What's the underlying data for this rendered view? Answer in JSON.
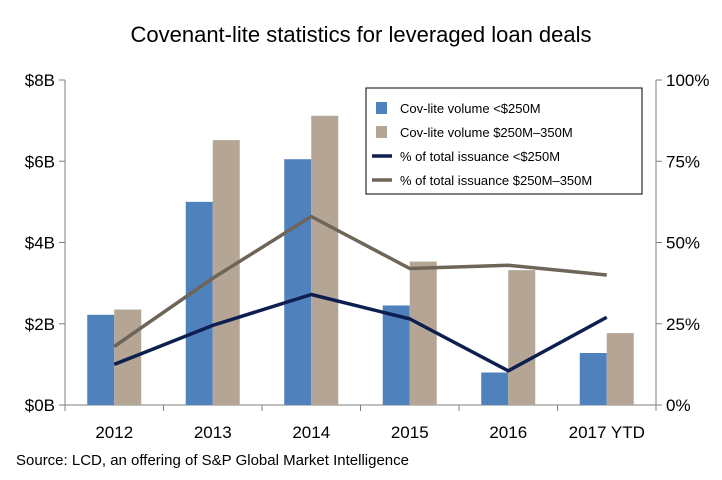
{
  "chart_data": {
    "type": "bar",
    "title": "Covenant-lite statistics  for leveraged loan deals",
    "source": "Source: LCD, an offering of S&P Global Market Intelligence",
    "categories": [
      "2012",
      "2013",
      "2014",
      "2015",
      "2016",
      "2017 YTD"
    ],
    "y_left": {
      "ticks": [
        "$0B",
        "$2B",
        "$4B",
        "$6B",
        "$8B"
      ],
      "range": [
        0,
        8
      ]
    },
    "y_right": {
      "ticks": [
        "0%",
        "25%",
        "50%",
        "75%",
        "100%"
      ],
      "range": [
        0,
        100
      ]
    },
    "series": [
      {
        "name": "Cov-lite volume <$250M",
        "kind": "bar",
        "axis": "left",
        "color": "#4f81bd",
        "values": [
          2.22,
          5.0,
          6.05,
          2.45,
          0.8,
          1.28
        ]
      },
      {
        "name": "Cov-lite volume $250M–350M",
        "kind": "bar",
        "axis": "left",
        "color": "#b5a595",
        "values": [
          2.35,
          6.52,
          7.12,
          3.53,
          3.32,
          1.77
        ]
      },
      {
        "name": "% of total issuance <$250M",
        "kind": "line",
        "axis": "right",
        "color": "#0d1f4f",
        "values": [
          12.5,
          24.5,
          34.0,
          26.5,
          10.5,
          27.0
        ]
      },
      {
        "name": "% of total issuance $250M–350M",
        "kind": "line",
        "axis": "right",
        "color": "#6e6558",
        "values": [
          18.0,
          39.0,
          58.0,
          42.0,
          43.0,
          40.0
        ]
      }
    ],
    "legend_placement": "top-right",
    "grid": false
  }
}
